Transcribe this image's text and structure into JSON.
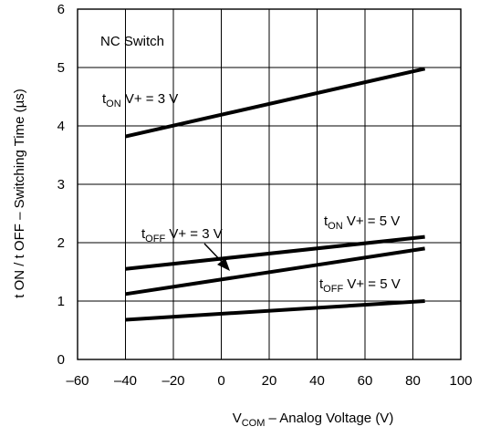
{
  "chart_data": {
    "type": "line",
    "title": "",
    "xlabel": {
      "main": "V",
      "sub": "COM",
      "rest": " – Analog Voltage (V)"
    },
    "ylabel": "t ON  /  t OFF  – Switching Time (µs)",
    "xlim": [
      -60,
      100
    ],
    "ylim": [
      0,
      6
    ],
    "xticks": [
      -60,
      -40,
      -20,
      0,
      20,
      40,
      60,
      80,
      100
    ],
    "yticks": [
      0,
      1,
      2,
      3,
      4,
      5,
      6
    ],
    "xtick_labels": [
      "–60",
      "–40",
      "–20",
      "0",
      "20",
      "40",
      "60",
      "80",
      "100"
    ],
    "ytick_labels": [
      "0",
      "1",
      "2",
      "3",
      "4",
      "5",
      "6"
    ],
    "grid": true,
    "annotation": "NC Switch",
    "series": [
      {
        "name": "tON V+ = 3 V",
        "x": [
          -40,
          85
        ],
        "y": [
          3.82,
          4.98
        ],
        "label": {
          "main": "t",
          "sub": "ON",
          "rest": " V+ = 3 V"
        }
      },
      {
        "name": "tON V+ = 5 V",
        "x": [
          -40,
          85
        ],
        "y": [
          1.55,
          2.1
        ],
        "label": {
          "main": "t",
          "sub": "ON",
          "rest": " V+ = 5 V"
        }
      },
      {
        "name": "tOFF V+ = 3 V",
        "x": [
          -40,
          85
        ],
        "y": [
          1.12,
          1.9
        ],
        "label": {
          "main": "t",
          "sub": "OFF",
          "rest": " V+ = 3 V"
        }
      },
      {
        "name": "tOFF V+ = 5 V",
        "x": [
          -40,
          85
        ],
        "y": [
          0.68,
          1.0
        ],
        "label": {
          "main": "t",
          "sub": "OFF",
          "rest": " V+ = 5 V"
        }
      }
    ]
  }
}
